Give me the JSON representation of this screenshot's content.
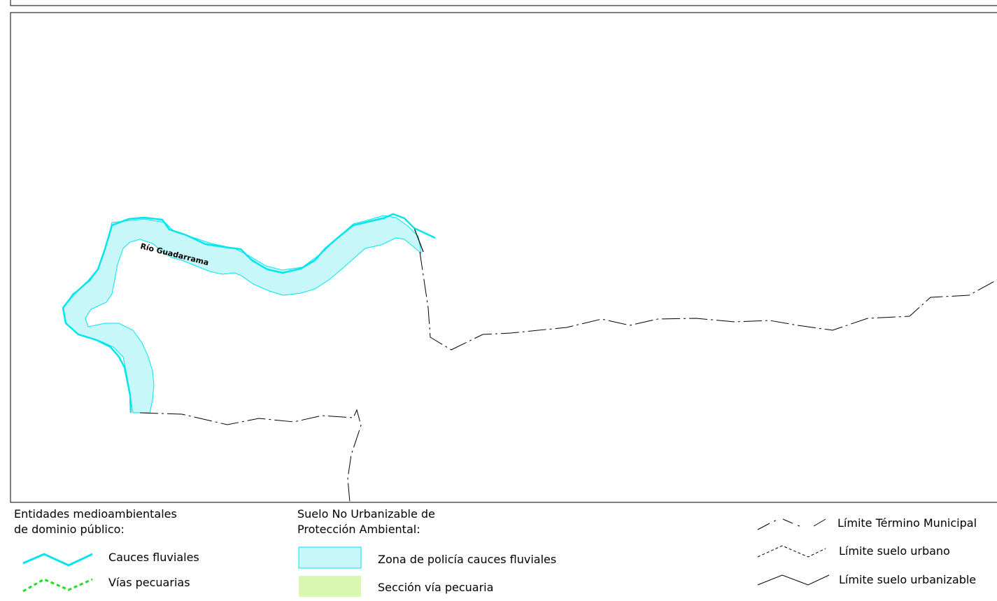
{
  "map": {
    "river_label": "Río Guadarrama"
  },
  "legend": {
    "group_1": {
      "title_line1": "Entidades medioambientales",
      "title_line2": "de dominio público:",
      "items": [
        {
          "label": "Cauces fluviales",
          "symbol": "river-line",
          "color": "#00E5EE"
        },
        {
          "label": "Vías pecuarias",
          "symbol": "livestock-path-line",
          "color": "#22DD22"
        }
      ]
    },
    "group_2": {
      "title_line1": "Suelo No Urbanizable de",
      "title_line2": "Protección Ambiental:",
      "items": [
        {
          "label": "Zona de policía cauces fluviales",
          "symbol": "fill-box",
          "fill": "#C8F7FA",
          "stroke": "#00E5EE"
        },
        {
          "label": "Sección vía pecuaria",
          "symbol": "fill-box",
          "fill": "#D9F7B0"
        }
      ]
    },
    "group_3": {
      "items": [
        {
          "label": "Límite Término Municipal",
          "symbol": "dash-dot-line"
        },
        {
          "label": "Límite suelo urbano",
          "symbol": "dashed-line"
        },
        {
          "label": "Límite suelo urbanizable",
          "symbol": "thin-line"
        }
      ]
    }
  }
}
